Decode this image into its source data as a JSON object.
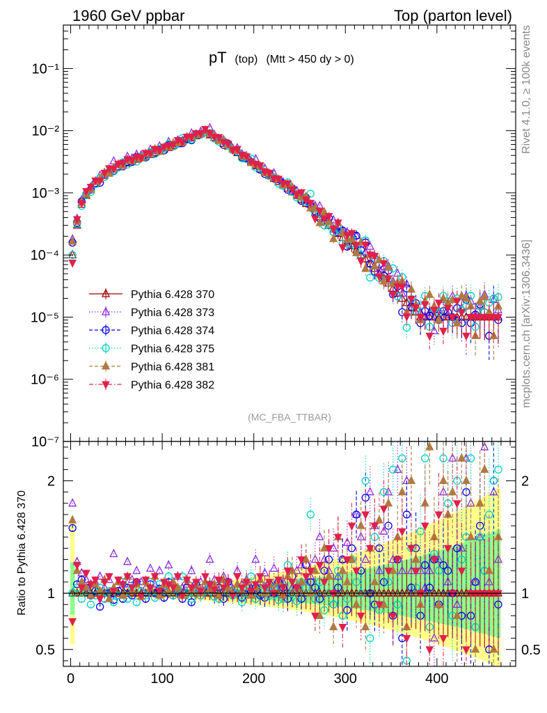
{
  "header": {
    "left": "1960 GeV ppbar",
    "right": "Top (parton level)"
  },
  "side_labels": {
    "rivet": "Rivet 4.1.0, ≥ 100k events",
    "mcplots": "mcplots.cern.ch [arXiv:1306.3436]"
  },
  "plot_title": {
    "main": "pT",
    "sub1": "(top)",
    "sub2": "(Mtt > 450 dy > 0)"
  },
  "watermark": "(MC_FBA_TTBAR)",
  "ratio_ylabel": "Ratio to Pythia 6.428 370",
  "chart_data": {
    "type": "scatter",
    "top_panel": {
      "yscale": "log",
      "ylim": [
        1e-07,
        0.5
      ],
      "ytick_labels": [
        "10⁻⁷",
        "10⁻⁶",
        "10⁻⁵",
        "10⁻⁴",
        "10⁻³",
        "10⁻²",
        "10⁻¹"
      ],
      "ytick_values": [
        1e-07,
        1e-06,
        1e-05,
        0.0001,
        0.001,
        0.01,
        0.1
      ]
    },
    "ratio_panel": {
      "ylim": [
        0.35,
        2.35
      ],
      "ytick_labels": [
        "0.5",
        "1",
        "2"
      ],
      "ytick_values": [
        0.5,
        1,
        2
      ]
    },
    "xlim": [
      -8,
      486
    ],
    "xtick_labels": [
      "0",
      "100",
      "200",
      "300",
      "400"
    ],
    "xtick_values": [
      0,
      100,
      200,
      300,
      400
    ],
    "reference_x": [
      2,
      7,
      12,
      17,
      22,
      27,
      32,
      37,
      42,
      47,
      52,
      57,
      62,
      67,
      72,
      77,
      82,
      87,
      92,
      97,
      102,
      107,
      112,
      117,
      122,
      127,
      132,
      137,
      142,
      147,
      152,
      157,
      162,
      167,
      172,
      177,
      182,
      187,
      192,
      197,
      202,
      207,
      212,
      217,
      222,
      227,
      232,
      237,
      242,
      247,
      252,
      257,
      262,
      267,
      272,
      277,
      282,
      287,
      292,
      297,
      302,
      307,
      312,
      317,
      322,
      327,
      332,
      337,
      342,
      347,
      352,
      357,
      362,
      367,
      372,
      377,
      382,
      387,
      392,
      397,
      402,
      407,
      412,
      417,
      422,
      427,
      432,
      437,
      442,
      447,
      452,
      457,
      462,
      467
    ],
    "reference_y": [
      0.0001,
      0.0003,
      0.00065,
      0.0009,
      0.00115,
      0.0014,
      0.00165,
      0.0019,
      0.00215,
      0.0024,
      0.0026,
      0.0028,
      0.003,
      0.0032,
      0.00345,
      0.0037,
      0.0039,
      0.0041,
      0.0044,
      0.0047,
      0.005,
      0.0053,
      0.0057,
      0.0061,
      0.0066,
      0.0071,
      0.0076,
      0.0082,
      0.0088,
      0.0092,
      0.0085,
      0.0077,
      0.007,
      0.0062,
      0.0056,
      0.005,
      0.0044,
      0.0039,
      0.0035,
      0.0031,
      0.0027,
      0.0024,
      0.0021,
      0.0019,
      0.0017,
      0.0015,
      0.00135,
      0.00118,
      0.00103,
      0.0009,
      0.00078,
      0.00067,
      0.00057,
      0.00048,
      0.00041,
      0.00035,
      0.0003,
      0.00026,
      0.00022,
      0.00019,
      0.00016,
      0.00014,
      0.00012,
      0.0001,
      8.6e-05,
      7.2e-05,
      6e-05,
      5e-05,
      4.2e-05,
      3.5e-05,
      2.9e-05,
      2.4e-05,
      2e-05,
      1.7e-05,
      1.4e-05,
      1.2e-05,
      1e-05,
      1e-05,
      1e-05,
      1e-05,
      1e-05,
      1e-05,
      1e-05,
      1e-05,
      1e-05,
      1e-05,
      1e-05,
      1e-05,
      1e-05,
      1e-05,
      1e-05,
      1e-05,
      1e-05,
      1e-05
    ],
    "series": [
      {
        "name": "Pythia 6.428 370",
        "color": "#990000",
        "marker": "triangle-up-open",
        "dash": "solid",
        "ratio": [
          1.0,
          1.0,
          1.0,
          1.0,
          1.0,
          1.0,
          1.0,
          1.0,
          1.0,
          1.0,
          1.0,
          1.0,
          1.0,
          1.0,
          1.0,
          1.0,
          1.0,
          1.0,
          1.0,
          1.0,
          1.0,
          1.0,
          1.0,
          1.0,
          1.0,
          1.0,
          1.0,
          1.0,
          1.0,
          1.0,
          1.0,
          1.0,
          1.0,
          1.0,
          1.0,
          1.0,
          1.0,
          1.0,
          1.0,
          1.0,
          1.0,
          1.0,
          1.0,
          1.0,
          1.0,
          1.0,
          1.0,
          1.0,
          1.0,
          1.0,
          1.0,
          1.0,
          1.0,
          1.0,
          1.0,
          1.0,
          1.0,
          1.0,
          1.0,
          1.0,
          1.0,
          1.0,
          1.0,
          1.0,
          1.0,
          1.0,
          1.0,
          1.0,
          1.0,
          1.0,
          1.0,
          1.0,
          1.0,
          1.0,
          1.0,
          1.0,
          1.0,
          1.0,
          1.0,
          1.0,
          1.0,
          1.0,
          1.0,
          1.0,
          1.0,
          1.0,
          1.0,
          1.0,
          1.0,
          1.0,
          1.0,
          1.0,
          1.0,
          1.0
        ]
      },
      {
        "name": "Pythia 6.428 373",
        "color": "#8a2be2",
        "marker": "triangle-up-open",
        "dash": "dotted",
        "ratio": [
          1.8,
          1.28,
          1.18,
          1.12,
          1.08,
          1.1,
          1.15,
          1.05,
          1.12,
          1.35,
          1.1,
          1.08,
          1.28,
          1.12,
          1.2,
          1.1,
          1.05,
          1.22,
          1.08,
          1.2,
          1.06,
          1.25,
          1.1,
          1.15,
          1.05,
          1.08,
          1.2,
          1.04,
          1.1,
          1.08,
          1.3,
          1.12,
          1.06,
          1.15,
          1.1,
          1.04,
          1.2,
          1.08,
          1.12,
          1.05,
          1.3,
          1.1,
          1.18,
          1.05,
          1.22,
          1.08,
          1.1,
          1.15,
          1.05,
          1.2,
          1.25,
          1.1,
          1.15,
          1.3,
          1.5,
          1.3,
          1.2,
          1.4,
          1.15,
          1.3,
          1.45,
          1.3,
          1.7,
          1.5,
          1.3,
          1.9,
          1.6,
          1.2,
          1.55,
          1.9,
          1.3,
          2.1,
          1.2,
          2.0,
          1.2,
          1.3,
          1.2,
          1.05,
          1.2,
          0.6,
          1.3,
          1.9,
          1.1,
          2.2,
          0.9,
          1.4,
          2.2,
          1.8,
          1.1,
          1.5,
          2.3,
          1.1,
          1.9,
          1.3
        ]
      },
      {
        "name": "Pythia 6.428 374",
        "color": "#0000ee",
        "marker": "circle-open",
        "dash": "dashed",
        "ratio": [
          1.58,
          1.08,
          1.12,
          1.05,
          0.98,
          1.02,
          0.88,
          0.95,
          1.0,
          0.94,
          1.02,
          0.95,
          1.05,
          0.98,
          1.1,
          1.02,
          0.95,
          1.08,
          1.0,
          1.04,
          0.96,
          1.1,
          0.98,
          1.02,
          0.95,
          1.05,
          0.92,
          1.08,
          0.98,
          1.02,
          1.04,
          0.97,
          1.05,
          0.95,
          1.1,
          0.98,
          1.03,
          0.96,
          1.05,
          1.01,
          1.05,
          0.98,
          0.96,
          1.08,
          1.0,
          1.1,
          1.05,
          0.95,
          1.15,
          1.05,
          0.95,
          1.25,
          1.1,
          1.05,
          0.95,
          1.2,
          1.3,
          0.9,
          1.05,
          1.3,
          0.85,
          1.4,
          1.7,
          1.2,
          1.85,
          1.0,
          0.9,
          1.4,
          1.1,
          1.6,
          0.8,
          1.3,
          0.6,
          1.7,
          1.05,
          1.4,
          0.8,
          1.25,
          1.05,
          1.3,
          0.9,
          1.25,
          1.2,
          1.0,
          1.4,
          0.8,
          1.9,
          0.8,
          1.1,
          1.6,
          1.2,
          0.5,
          2.0,
          0.9
        ]
      },
      {
        "name": "Pythia 6.428 375",
        "color": "#00d0c0",
        "marker": "circle-open",
        "dash": "dotted",
        "ratio": [
          1.0,
          1.05,
          0.95,
          1.02,
          0.9,
          0.98,
          1.05,
          0.95,
          1.02,
          0.92,
          0.98,
          1.1,
          0.95,
          1.05,
          0.92,
          1.02,
          0.98,
          1.1,
          0.96,
          1.08,
          1.02,
          1.15,
          0.98,
          1.04,
          1.15,
          1.0,
          0.95,
          1.05,
          0.98,
          1.02,
          1.08,
          0.97,
          0.95,
          1.1,
          1.02,
          0.98,
          1.05,
          0.92,
          1.0,
          1.15,
          0.95,
          1.08,
          1.02,
          0.98,
          1.05,
          0.94,
          0.95,
          1.25,
          1.0,
          0.93,
          1.1,
          1.05,
          1.7,
          0.95,
          1.1,
          0.85,
          1.0,
          0.9,
          1.2,
          0.8,
          0.95,
          1.3,
          1.1,
          1.0,
          2.0,
          0.6,
          1.5,
          0.85,
          1.9,
          1.1,
          2.1,
          0.9,
          2.2,
          0.4,
          1.4,
          1.05,
          1.55,
          2.2,
          0.7,
          1.35,
          1.2,
          2.2,
          1.8,
          0.8,
          2.0,
          1.3,
          1.5,
          2.2,
          0.7,
          1.5,
          1.2,
          1.7,
          2.0,
          2.1
        ]
      },
      {
        "name": "Pythia 6.428 381",
        "color": "#b07a40",
        "marker": "triangle-up-filled",
        "dash": "dashed",
        "ratio": [
          1.65,
          1.2,
          1.1,
          1.05,
          0.98,
          1.08,
          1.02,
          1.12,
          0.95,
          1.05,
          1.1,
          0.98,
          1.15,
          1.02,
          1.08,
          0.97,
          1.1,
          1.05,
          1.15,
          0.98,
          1.08,
          1.02,
          1.1,
          1.05,
          0.98,
          1.12,
          1.03,
          1.08,
          1.0,
          1.1,
          1.04,
          1.08,
          0.98,
          1.12,
          1.05,
          1.0,
          1.08,
          1.02,
          1.1,
          0.98,
          1.05,
          1.12,
          1.0,
          1.08,
          1.02,
          1.1,
          0.98,
          1.15,
          1.2,
          1.05,
          1.1,
          1.3,
          1.0,
          1.2,
          0.8,
          1.4,
          1.15,
          0.7,
          1.5,
          1.2,
          1.1,
          1.3,
          0.9,
          1.6,
          0.7,
          1.4,
          1.1,
          1.65,
          0.9,
          1.8,
          1.2,
          1.5,
          1.9,
          0.7,
          2.0,
          1.3,
          0.9,
          1.8,
          2.3,
          1.5,
          0.9,
          2.0,
          1.7,
          1.9,
          0.8,
          2.2,
          2.0,
          1.5,
          0.5,
          1.8,
          2.1,
          1.2,
          0.5,
          1.5
        ]
      },
      {
        "name": "Pythia 6.428 382",
        "color": "#e0204a",
        "marker": "triangle-down-filled",
        "dash": "dashdot",
        "ratio": [
          0.75,
          1.25,
          1.05,
          1.18,
          1.08,
          1.12,
          0.95,
          1.1,
          1.15,
          1.02,
          1.12,
          1.08,
          1.15,
          1.05,
          1.1,
          0.98,
          1.12,
          1.05,
          1.15,
          1.02,
          1.1,
          1.08,
          1.05,
          1.15,
          0.98,
          1.12,
          1.05,
          1.1,
          1.02,
          1.15,
          1.08,
          1.03,
          1.12,
          1.05,
          1.1,
          0.98,
          1.15,
          1.05,
          1.1,
          1.02,
          1.08,
          1.15,
          1.05,
          1.1,
          1.0,
          1.12,
          1.05,
          1.2,
          1.1,
          1.05,
          1.3,
          1.15,
          1.2,
          0.8,
          1.25,
          1.1,
          1.4,
          1.0,
          1.5,
          0.7,
          1.3,
          1.6,
          1.2,
          0.8,
          1.7,
          1.4,
          1.6,
          0.9,
          1.75,
          1.2,
          0.8,
          1.3,
          1.55,
          0.6,
          1.4,
          1.2,
          1.0,
          1.6,
          0.5,
          1.3,
          1.7,
          0.6,
          1.4,
          1.0,
          1.8,
          1.2,
          0.5,
          1.0,
          1.0,
          1.0,
          1.0,
          1.0,
          1.0,
          1.0
        ]
      }
    ]
  }
}
